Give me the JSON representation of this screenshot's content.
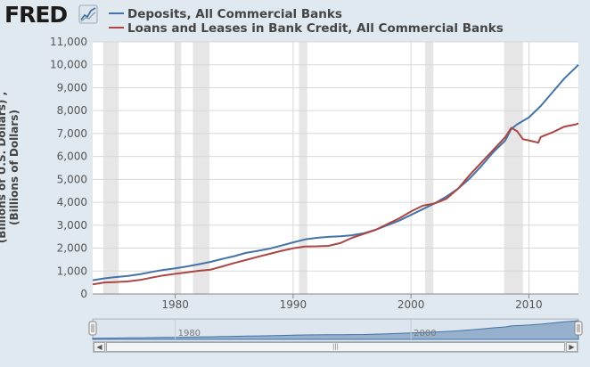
{
  "header": {
    "logo": "FRED",
    "logo_icon": "line-chart-icon"
  },
  "colors": {
    "deposits": "#4572a7",
    "loans": "#aa4643",
    "recession": "#e6e6e6",
    "background": "#e1e9f0"
  },
  "chart_data": {
    "type": "line",
    "xlabel": "",
    "ylabel": "(Billions of U.S. Dollars) , (Billions of Dollars)",
    "xlim": [
      1973.0,
      2014.2
    ],
    "ylim": [
      0,
      11000
    ],
    "xticks": [
      1980,
      1990,
      2000,
      2010
    ],
    "yticks": [
      0,
      1000,
      2000,
      3000,
      4000,
      5000,
      6000,
      7000,
      8000,
      9000,
      10000,
      11000
    ],
    "ytick_labels": [
      "0",
      "1,000",
      "2,000",
      "3,000",
      "4,000",
      "5,000",
      "6,000",
      "7,000",
      "8,000",
      "9,000",
      "10,000",
      "11,000"
    ],
    "grid": true,
    "legend_position": "top",
    "recessions": [
      [
        1973.9,
        1975.2
      ],
      [
        1980.0,
        1980.5
      ],
      [
        1981.5,
        1982.9
      ],
      [
        1990.5,
        1991.2
      ],
      [
        2001.2,
        2001.9
      ],
      [
        2007.9,
        2009.5
      ]
    ],
    "series": [
      {
        "name": "Deposits, All Commercial Banks",
        "x": [
          1973.0,
          1974.0,
          1975.0,
          1976.0,
          1977.0,
          1978.0,
          1979.0,
          1980.0,
          1981.0,
          1982.0,
          1983.0,
          1984.0,
          1985.0,
          1986.0,
          1987.0,
          1988.0,
          1989.0,
          1990.0,
          1991.0,
          1992.0,
          1993.0,
          1994.0,
          1995.0,
          1996.0,
          1997.0,
          1998.0,
          1999.0,
          2000.0,
          2001.0,
          2002.0,
          2003.0,
          2004.0,
          2005.0,
          2006.0,
          2007.0,
          2008.0,
          2008.5,
          2009.0,
          2009.5,
          2010.0,
          2011.0,
          2012.0,
          2013.0,
          2014.0,
          2014.2
        ],
        "y": [
          600,
          680,
          740,
          790,
          860,
          960,
          1050,
          1120,
          1200,
          1300,
          1400,
          1530,
          1650,
          1790,
          1880,
          1980,
          2110,
          2250,
          2380,
          2450,
          2490,
          2520,
          2560,
          2650,
          2800,
          3000,
          3200,
          3450,
          3700,
          3950,
          4250,
          4600,
          5050,
          5600,
          6200,
          6700,
          7200,
          7400,
          7550,
          7700,
          8200,
          8800,
          9400,
          9900,
          10000
        ]
      },
      {
        "name": "Loans and Leases in Bank Credit, All Commercial Banks",
        "x": [
          1973.0,
          1974.0,
          1975.0,
          1976.0,
          1977.0,
          1978.0,
          1979.0,
          1980.0,
          1981.0,
          1982.0,
          1983.0,
          1984.0,
          1985.0,
          1986.0,
          1987.0,
          1988.0,
          1989.0,
          1990.0,
          1991.0,
          1992.0,
          1993.0,
          1994.0,
          1995.0,
          1996.0,
          1997.0,
          1998.0,
          1999.0,
          2000.0,
          2001.0,
          2002.0,
          2003.0,
          2004.0,
          2005.0,
          2006.0,
          2007.0,
          2008.0,
          2008.5,
          2009.0,
          2009.5,
          2010.0,
          2010.8,
          2011.0,
          2012.0,
          2013.0,
          2014.0,
          2014.2
        ],
        "y": [
          420,
          500,
          520,
          550,
          610,
          710,
          810,
          880,
          940,
          1010,
          1060,
          1200,
          1350,
          1480,
          1620,
          1750,
          1880,
          1990,
          2070,
          2080,
          2100,
          2220,
          2450,
          2620,
          2800,
          3050,
          3300,
          3600,
          3850,
          3950,
          4150,
          4600,
          5200,
          5750,
          6300,
          6850,
          7250,
          7100,
          6750,
          6700,
          6600,
          6850,
          7050,
          7300,
          7400,
          7450
        ]
      }
    ]
  },
  "navigator": {
    "xticks": [
      "1980",
      "2000"
    ],
    "scroll_grip": "|||"
  }
}
